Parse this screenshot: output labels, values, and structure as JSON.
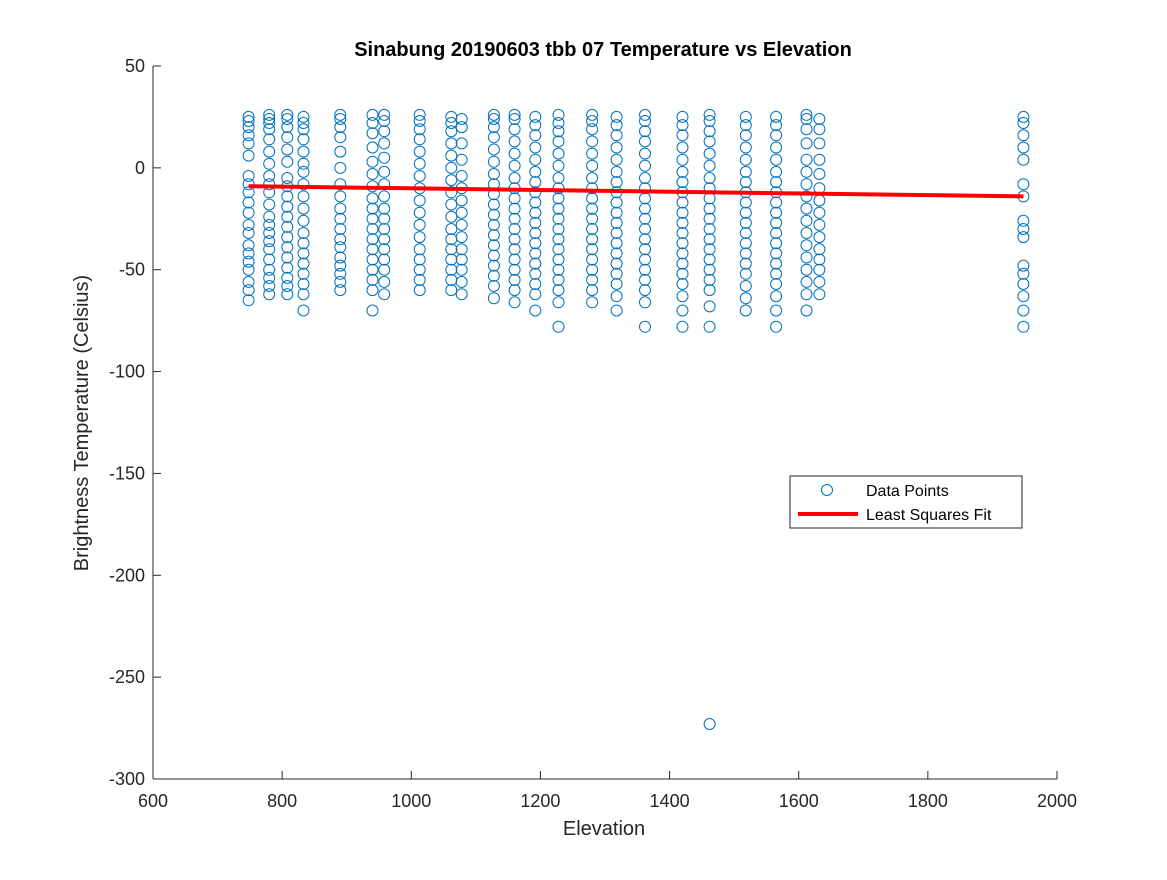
{
  "chart_data": {
    "type": "scatter",
    "title": "Sinabung 20190603 tbb 07 Temperature vs Elevation",
    "xlabel": "Elevation",
    "ylabel": "Brightness Temperature (Celsius)",
    "xlim": [
      600,
      2000
    ],
    "ylim": [
      -300,
      50
    ],
    "xticks": [
      600,
      800,
      1000,
      1200,
      1400,
      1600,
      1800,
      2000
    ],
    "yticks": [
      -300,
      -250,
      -200,
      -150,
      -100,
      -50,
      0,
      50
    ],
    "legend_position": "center-right",
    "series": [
      {
        "name": "Data Points",
        "kind": "markers",
        "color": "#0072BD",
        "columns": [
          {
            "x": 748,
            "y": [
              -65,
              -60,
              -56,
              -50,
              -46,
              -42,
              -38,
              -32,
              -28,
              -22,
              -17,
              -12,
              -8,
              -4,
              6,
              12,
              16,
              20,
              23,
              25
            ]
          },
          {
            "x": 780,
            "y": [
              -62,
              -58,
              -54,
              -50,
              -45,
              -40,
              -36,
              -32,
              -28,
              -24,
              -18,
              -12,
              -8,
              -4,
              2,
              8,
              14,
              19,
              22,
              24,
              26
            ]
          },
          {
            "x": 808,
            "y": [
              -62,
              -58,
              -54,
              -49,
              -44,
              -39,
              -34,
              -29,
              -24,
              -19,
              -14,
              -9,
              -5,
              3,
              9,
              15,
              20,
              24,
              26
            ]
          },
          {
            "x": 833,
            "y": [
              -70,
              -62,
              -57,
              -52,
              -47,
              -42,
              -37,
              -32,
              -26,
              -20,
              -14,
              -8,
              -2,
              2,
              8,
              14,
              19,
              22,
              25
            ]
          },
          {
            "x": 890,
            "y": [
              -60,
              -56,
              -52,
              -48,
              -44,
              -39,
              -35,
              -30,
              -25,
              -20,
              -14,
              -8,
              0,
              8,
              15,
              20,
              24,
              26
            ]
          },
          {
            "x": 940,
            "y": [
              -70,
              -60,
              -55,
              -50,
              -45,
              -40,
              -35,
              -30,
              -25,
              -20,
              -15,
              -9,
              -3,
              3,
              10,
              17,
              22,
              26
            ]
          },
          {
            "x": 958,
            "y": [
              -62,
              -56,
              -50,
              -45,
              -40,
              -35,
              -30,
              -25,
              -20,
              -14,
              -8,
              -2,
              5,
              12,
              18,
              23,
              26
            ]
          },
          {
            "x": 1013,
            "y": [
              -60,
              -55,
              -50,
              -45,
              -40,
              -34,
              -28,
              -22,
              -16,
              -10,
              -4,
              2,
              8,
              14,
              19,
              23,
              26
            ]
          },
          {
            "x": 1062,
            "y": [
              -60,
              -55,
              -50,
              -45,
              -40,
              -35,
              -30,
              -24,
              -18,
              -12,
              -6,
              0,
              6,
              12,
              18,
              22,
              25
            ]
          },
          {
            "x": 1078,
            "y": [
              -62,
              -56,
              -50,
              -45,
              -40,
              -34,
              -28,
              -22,
              -16,
              -10,
              -4,
              4,
              12,
              20,
              24
            ]
          },
          {
            "x": 1128,
            "y": [
              -64,
              -58,
              -53,
              -48,
              -43,
              -38,
              -33,
              -28,
              -23,
              -18,
              -13,
              -8,
              -3,
              3,
              9,
              15,
              20,
              24,
              26
            ]
          },
          {
            "x": 1160,
            "y": [
              -66,
              -60,
              -55,
              -50,
              -45,
              -40,
              -35,
              -30,
              -25,
              -20,
              -15,
              -10,
              -5,
              1,
              7,
              13,
              19,
              24,
              26
            ]
          },
          {
            "x": 1192,
            "y": [
              -70,
              -62,
              -57,
              -52,
              -47,
              -42,
              -37,
              -32,
              -27,
              -22,
              -17,
              -12,
              -7,
              -2,
              4,
              10,
              16,
              21,
              25
            ]
          },
          {
            "x": 1228,
            "y": [
              -78,
              -66,
              -60,
              -55,
              -50,
              -45,
              -40,
              -35,
              -30,
              -25,
              -20,
              -15,
              -10,
              -5,
              1,
              7,
              13,
              18,
              22,
              26
            ]
          },
          {
            "x": 1280,
            "y": [
              -66,
              -60,
              -55,
              -50,
              -45,
              -40,
              -35,
              -30,
              -25,
              -20,
              -15,
              -10,
              -5,
              1,
              7,
              13,
              19,
              23,
              26
            ]
          },
          {
            "x": 1318,
            "y": [
              -70,
              -63,
              -57,
              -52,
              -47,
              -42,
              -37,
              -32,
              -27,
              -22,
              -17,
              -12,
              -7,
              -2,
              4,
              10,
              16,
              21,
              25
            ]
          },
          {
            "x": 1362,
            "y": [
              -78,
              -66,
              -60,
              -55,
              -50,
              -45,
              -40,
              -35,
              -30,
              -25,
              -20,
              -15,
              -10,
              -5,
              1,
              7,
              13,
              18,
              23,
              26
            ]
          },
          {
            "x": 1420,
            "y": [
              -78,
              -70,
              -63,
              -57,
              -52,
              -47,
              -42,
              -37,
              -32,
              -27,
              -22,
              -17,
              -12,
              -7,
              -2,
              4,
              10,
              16,
              21,
              25
            ]
          },
          {
            "x": 1462,
            "y": [
              -273,
              -78,
              -68,
              -60,
              -55,
              -50,
              -45,
              -40,
              -35,
              -30,
              -25,
              -20,
              -15,
              -10,
              -5,
              1,
              7,
              13,
              18,
              23,
              26
            ]
          },
          {
            "x": 1518,
            "y": [
              -70,
              -64,
              -58,
              -52,
              -47,
              -42,
              -37,
              -32,
              -27,
              -22,
              -17,
              -12,
              -7,
              -2,
              4,
              10,
              16,
              21,
              25
            ]
          },
          {
            "x": 1565,
            "y": [
              -78,
              -70,
              -63,
              -57,
              -52,
              -47,
              -42,
              -37,
              -32,
              -27,
              -22,
              -17,
              -12,
              -7,
              -2,
              4,
              10,
              16,
              21,
              25
            ]
          },
          {
            "x": 1612,
            "y": [
              -70,
              -62,
              -56,
              -50,
              -44,
              -38,
              -32,
              -26,
              -20,
              -14,
              -8,
              -2,
              4,
              12,
              19,
              24,
              26
            ]
          },
          {
            "x": 1632,
            "y": [
              -62,
              -56,
              -50,
              -45,
              -40,
              -34,
              -28,
              -22,
              -16,
              -10,
              -3,
              4,
              12,
              19,
              24
            ]
          },
          {
            "x": 1948,
            "y": [
              -78,
              -70,
              -63,
              -57,
              -52,
              -48,
              -34,
              -30,
              -26,
              -14,
              -8,
              4,
              10,
              16,
              22,
              25
            ]
          }
        ]
      },
      {
        "name": "Least Squares Fit",
        "kind": "line",
        "color": "#FF0000",
        "x": [
          748,
          1948
        ],
        "y": [
          -9,
          -14
        ]
      }
    ]
  }
}
